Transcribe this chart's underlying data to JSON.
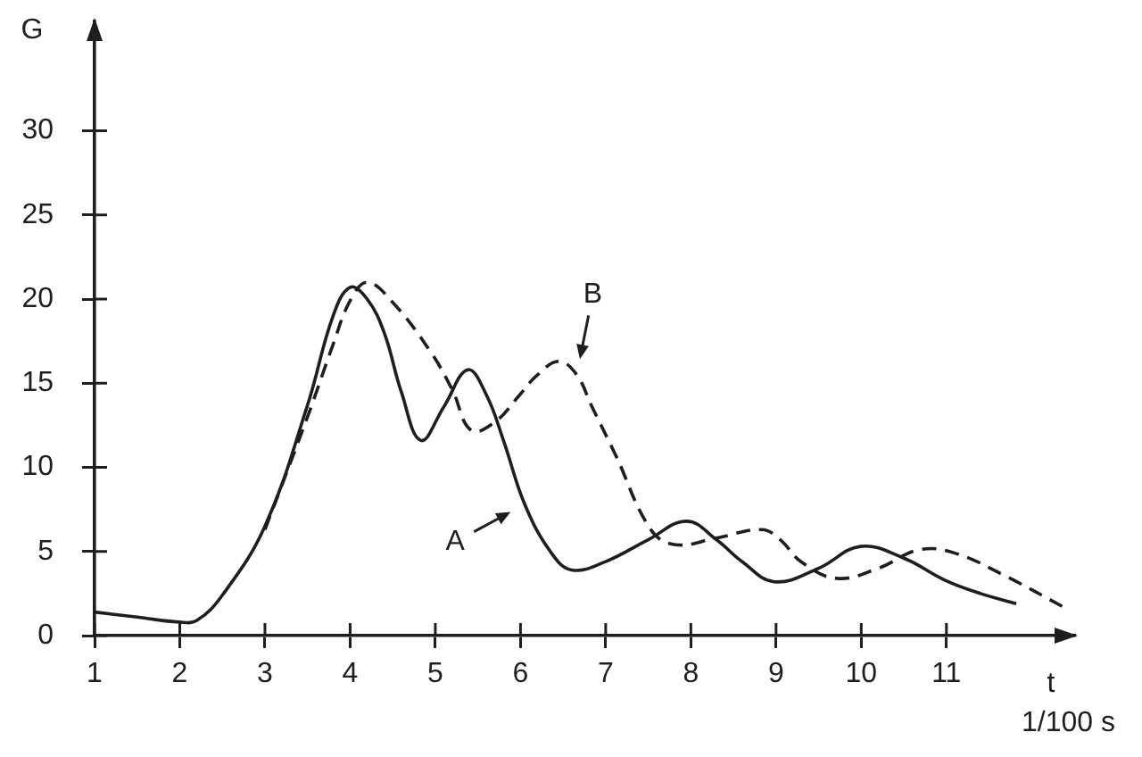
{
  "chart_data": {
    "type": "line",
    "xlabel": "t\n1/100 s",
    "ylabel": "G",
    "marker": "none",
    "xlim": [
      1,
      12.5
    ],
    "ylim": [
      0,
      36.5
    ],
    "xticks": [
      1,
      2,
      3,
      4,
      5,
      6,
      7,
      8,
      9,
      10,
      11
    ],
    "yticks": [
      0,
      5,
      10,
      15,
      20,
      25,
      30
    ],
    "series": [
      {
        "color": "#1e1e1e",
        "line_style": "solid",
        "x": [
          1,
          1.5,
          2,
          2.2,
          2.5,
          3,
          3.5,
          3.8,
          4,
          4.2,
          4.4,
          4.6,
          4.83,
          5.1,
          5.38,
          5.6,
          5.8,
          6.05,
          6.35,
          6.6,
          7,
          7.5,
          7.95,
          8.3,
          8.6,
          8.98,
          9.5,
          9.99,
          10.5,
          10.98,
          11.4,
          11.82
        ],
        "values": [
          1.4,
          1.1,
          0.8,
          0.9,
          2.4,
          6.5,
          13.7,
          19,
          20.7,
          20,
          18,
          14.5,
          11.6,
          13.6,
          15.8,
          14.3,
          11.6,
          7.8,
          5,
          3.9,
          4.4,
          5.7,
          6.8,
          5.7,
          4.4,
          3.2,
          4,
          5.3,
          4.6,
          3.3,
          2.5,
          1.9
        ]
      },
      {
        "color": "#1e1e1e",
        "line_style": "dashed",
        "x": [
          3,
          3.5,
          3.8,
          4,
          4.2,
          4.5,
          4.94,
          5.2,
          5.42,
          5.7,
          5.99,
          6.2,
          6.45,
          6.66,
          6.83,
          7.11,
          7.53,
          7.82,
          8.3,
          8.83,
          9.05,
          9.29,
          9.71,
          10.2,
          10.68,
          11.1,
          11.67,
          12.41
        ],
        "values": [
          6.3,
          13,
          17.3,
          19.9,
          21,
          19.8,
          16.9,
          14.6,
          12.2,
          12.7,
          14.3,
          15.5,
          16.3,
          15.5,
          13.7,
          10.8,
          6.3,
          5.4,
          5.8,
          6.3,
          5.7,
          4.4,
          3.4,
          4,
          5.1,
          4.9,
          3.6,
          1.6
        ]
      }
    ],
    "annotations": [
      {
        "text": "A",
        "x": 6.05,
        "y": 7.8
      },
      {
        "text": "B",
        "x": 6.66,
        "y": 15.5
      }
    ]
  }
}
